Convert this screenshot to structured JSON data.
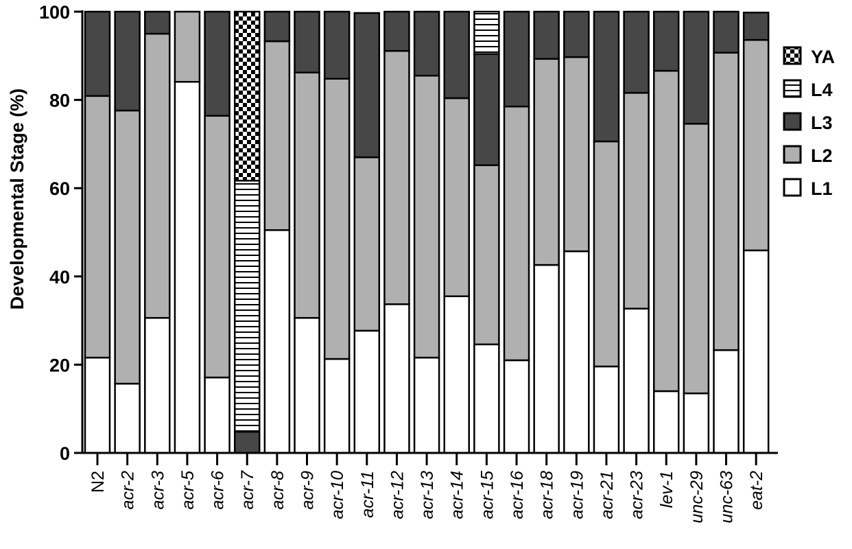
{
  "chart_data": {
    "type": "stacked-bar",
    "y_label": "Developmental Stage (%)",
    "categories": [
      "N2",
      "acr-2",
      "acr-3",
      "acr-5",
      "acr-6",
      "acr-7",
      "acr-8",
      "acr-9",
      "acr-10",
      "acr-11",
      "acr-12",
      "acr-13",
      "acr-14",
      "acr-15",
      "acr-16",
      "acr-18",
      "acr-19",
      "acr-21",
      "acr-23",
      "lev-1",
      "unc-29",
      "unc-63",
      "eat-2"
    ],
    "series": [
      {
        "name": "L1",
        "color": "#ffffff",
        "values": [
          21.6,
          15.7,
          30.6,
          84.1,
          17.1,
          0,
          50.5,
          30.6,
          21.3,
          27.7,
          33.7,
          21.6,
          35.5,
          24.6,
          21.0,
          42.6,
          45.7,
          19.6,
          32.7,
          14.0,
          13.5,
          23.3,
          45.9
        ]
      },
      {
        "name": "L2",
        "color": "#b0b0b0",
        "values": [
          59.3,
          61.9,
          64.4,
          15.9,
          59.3,
          0,
          42.8,
          55.6,
          63.5,
          39.3,
          57.4,
          63.9,
          44.9,
          40.6,
          57.5,
          46.7,
          44.0,
          51.0,
          48.9,
          72.6,
          61.1,
          67.4,
          47.7
        ]
      },
      {
        "name": "L3",
        "color": "#474747",
        "values": [
          19.1,
          22.4,
          5.0,
          0,
          23.6,
          4.8,
          6.7,
          13.8,
          15.2,
          32.7,
          8.9,
          14.5,
          19.6,
          25.2,
          21.5,
          10.7,
          10.3,
          29.4,
          18.4,
          13.4,
          25.4,
          9.3,
          6.2
        ]
      },
      {
        "name": "L4",
        "color": "#000000",
        "pattern": "horizontal-stripes",
        "values": [
          0,
          0,
          0,
          0,
          0,
          56.9,
          0,
          0,
          0,
          0,
          0,
          0,
          0,
          9.6,
          0,
          0,
          0,
          0,
          0,
          0,
          0,
          0,
          0
        ]
      },
      {
        "name": "YA",
        "color": "#000000",
        "pattern": "checkerboard",
        "values": [
          0,
          0,
          0,
          0,
          0,
          38.3,
          0,
          0,
          0,
          0,
          0,
          0,
          0,
          0,
          0,
          0,
          0,
          0,
          0,
          0,
          0,
          0,
          0
        ]
      }
    ],
    "ylim": [
      0,
      100
    ],
    "yticks": [
      0,
      20,
      40,
      60,
      80,
      100
    ],
    "grid": false,
    "legend": "right"
  }
}
